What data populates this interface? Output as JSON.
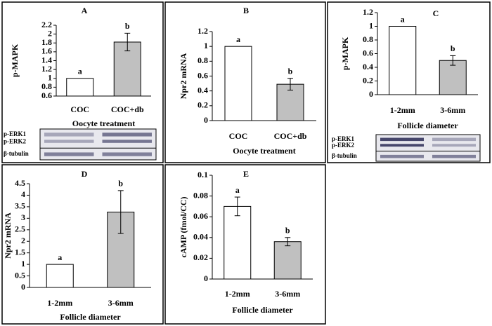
{
  "chart_data": [
    {
      "type": "bar",
      "panel": "A",
      "ylabel": "p-MAPK",
      "xlabel": "Oocyte treatment",
      "categories": [
        "COC",
        "COC+db"
      ],
      "values": [
        1,
        1.82
      ],
      "errors": [
        null,
        0.2
      ],
      "bar_labels": [
        "a",
        "b"
      ],
      "colors": [
        "#ffffff",
        "#c0c0c0"
      ],
      "ylim": [
        0.6,
        2.2
      ],
      "yticks": [
        0.6,
        0.8,
        1,
        1.2,
        1.4,
        1.6,
        1.8,
        2,
        2.2
      ],
      "blot_labels": [
        "p-ERK1",
        "p-ERK2",
        "β-tubulin"
      ]
    },
    {
      "type": "bar",
      "panel": "B",
      "ylabel": "Npr2 mRNA",
      "xlabel": "Oocyte treatment",
      "categories": [
        "COC",
        "COC+db"
      ],
      "values": [
        1,
        0.49
      ],
      "errors": [
        null,
        0.08
      ],
      "bar_labels": [
        "a",
        "b"
      ],
      "colors": [
        "#ffffff",
        "#c0c0c0"
      ],
      "ylim": [
        0,
        1.2
      ],
      "yticks": [
        0,
        0.2,
        0.4,
        0.6,
        0.8,
        1,
        1.2
      ]
    },
    {
      "type": "bar",
      "panel": "C",
      "ylabel": "p-MAPK",
      "xlabel": "Follicle diameter",
      "categories": [
        "1-2mm",
        "3-6mm"
      ],
      "values": [
        1,
        0.5
      ],
      "errors": [
        null,
        0.07
      ],
      "bar_labels": [
        "a",
        "b"
      ],
      "colors": [
        "#ffffff",
        "#c0c0c0"
      ],
      "ylim": [
        0,
        1.2
      ],
      "yticks": [
        0,
        0.2,
        0.4,
        0.6,
        0.8,
        1,
        1.2
      ],
      "blot_labels": [
        "p-ERK1",
        "p-ERK2",
        "β-tubulin"
      ]
    },
    {
      "type": "bar",
      "panel": "D",
      "ylabel": "Npr2 mRNA",
      "xlabel": "Follicle diameter",
      "categories": [
        "1-2mm",
        "3-6mm"
      ],
      "values": [
        1,
        3.27
      ],
      "errors": [
        null,
        0.93
      ],
      "bar_labels": [
        "a",
        "b"
      ],
      "colors": [
        "#ffffff",
        "#c0c0c0"
      ],
      "ylim": [
        0,
        4.5
      ],
      "yticks": [
        0,
        0.5,
        1,
        1.5,
        2,
        2.5,
        3,
        3.5,
        4,
        4.5
      ]
    },
    {
      "type": "bar",
      "panel": "E",
      "ylabel": "cAMP (fmol/CC)",
      "xlabel": "Follicle diameter",
      "categories": [
        "1-2mm",
        "3-6mm"
      ],
      "values": [
        0.07,
        0.036
      ],
      "errors": [
        0.009,
        0.004
      ],
      "bar_labels": [
        "a",
        "b"
      ],
      "colors": [
        "#ffffff",
        "#c0c0c0"
      ],
      "ylim": [
        0,
        0.1
      ],
      "yticks": [
        0,
        0.02,
        0.04,
        0.06,
        0.08,
        0.1
      ]
    }
  ]
}
